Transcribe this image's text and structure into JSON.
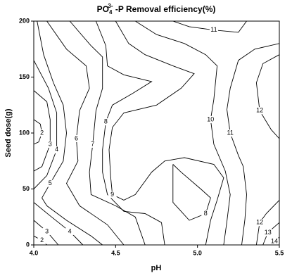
{
  "chart_data": {
    "type": "contour",
    "title": {
      "base": "PO",
      "sub": "4",
      "sup": "3-",
      "rest": " -P Removal efficiency(%)"
    },
    "xlabel": "pH",
    "ylabel": "Seed dose(g)",
    "xlim": [
      4.0,
      5.5
    ],
    "ylim": [
      0,
      200
    ],
    "xticks": [
      {
        "value": 4.0,
        "label": "4.0"
      },
      {
        "value": 4.5,
        "label": "4.5"
      },
      {
        "value": 5.0,
        "label": "5.0"
      },
      {
        "value": 5.5,
        "label": "5.5"
      }
    ],
    "yticks": [
      0,
      50,
      100,
      150,
      200
    ],
    "color": "#000000",
    "contours": [
      {
        "level": 2,
        "x": [
          4.0,
          4.04,
          4.05,
          4.03,
          4.0
        ],
        "y": [
          112,
          108,
          100,
          92,
          90
        ]
      },
      {
        "level": 2,
        "x": [
          4.0,
          4.05,
          4.08
        ],
        "y": [
          8,
          4,
          0
        ]
      },
      {
        "level": 3,
        "x": [
          4.0,
          4.08,
          4.1,
          4.1,
          4.05,
          4.0
        ],
        "y": [
          138,
          128,
          112,
          90,
          70,
          66
        ]
      },
      {
        "level": 3,
        "x": [
          4.0,
          4.08,
          4.15
        ],
        "y": [
          22,
          12,
          0
        ]
      },
      {
        "level": 4,
        "x": [
          4.0,
          4.09,
          4.14,
          4.14,
          4.08,
          4.0
        ],
        "y": [
          165,
          140,
          118,
          85,
          62,
          50
        ]
      },
      {
        "level": 4,
        "x": [
          4.0,
          4.1,
          4.22,
          4.3
        ],
        "y": [
          38,
          26,
          12,
          0
        ]
      },
      {
        "level": 5,
        "x": [
          4.02,
          4.06,
          4.12,
          4.18,
          4.2,
          4.18,
          4.1,
          4.05,
          4.08,
          4.2,
          4.35,
          4.42
        ],
        "y": [
          200,
          170,
          145,
          125,
          100,
          75,
          55,
          42,
          35,
          22,
          8,
          0
        ]
      },
      {
        "level": 6,
        "x": [
          4.08,
          4.2,
          4.32,
          4.34,
          4.28,
          4.26,
          4.27,
          4.2,
          4.28,
          4.45,
          4.55
        ],
        "y": [
          200,
          175,
          160,
          140,
          120,
          95,
          75,
          55,
          35,
          18,
          0
        ]
      },
      {
        "level": 7,
        "x": [
          4.22,
          4.35,
          4.42,
          4.42,
          4.38,
          4.36,
          4.34,
          4.35,
          4.5,
          4.62,
          4.68
        ],
        "y": [
          200,
          178,
          168,
          140,
          120,
          90,
          65,
          45,
          35,
          25,
          0
        ]
      },
      {
        "level": 8,
        "x": [
          4.38,
          4.44,
          4.45,
          4.55,
          4.72,
          4.6,
          4.48,
          4.44,
          4.42,
          4.42,
          4.45,
          4.55,
          4.68,
          4.78,
          4.8
        ],
        "y": [
          200,
          178,
          160,
          152,
          146,
          135,
          125,
          110,
          85,
          65,
          45,
          30,
          28,
          20,
          0
        ]
      },
      {
        "level": 8,
        "x": [
          4.85,
          4.9,
          5.02,
          5.08,
          5.05,
          4.95,
          4.85,
          4.85,
          4.85
        ],
        "y": [
          72,
          65,
          50,
          42,
          28,
          22,
          38,
          55,
          72
        ]
      },
      {
        "level": 9,
        "x": [
          4.5,
          4.58,
          4.68,
          4.85,
          4.98,
          4.9,
          4.75,
          4.55,
          4.48,
          4.46,
          4.47,
          4.48,
          4.55,
          4.62,
          4.72,
          4.8,
          4.92,
          5.1,
          5.16,
          5.12,
          5.08,
          5.05
        ],
        "y": [
          200,
          180,
          170,
          160,
          153,
          140,
          125,
          118,
          105,
          85,
          60,
          45,
          40,
          45,
          65,
          75,
          78,
          72,
          60,
          40,
          22,
          0
        ]
      },
      {
        "level": 10,
        "x": [
          4.62,
          4.75,
          4.92,
          5.05,
          5.12,
          5.1,
          5.08,
          5.1,
          5.17,
          5.2,
          5.18,
          5.16
        ],
        "y": [
          200,
          188,
          180,
          170,
          160,
          130,
          112,
          90,
          66,
          45,
          21,
          0
        ]
      },
      {
        "level": 11,
        "x": [
          4.85,
          4.95,
          5.1,
          5.25,
          5.3
        ],
        "y": [
          200,
          195,
          192,
          190,
          200
        ]
      },
      {
        "level": 11,
        "x": [
          5.5,
          5.35,
          5.25,
          5.2,
          5.18,
          5.2,
          5.25,
          5.28,
          5.3,
          5.29,
          5.27
        ],
        "y": [
          180,
          175,
          165,
          140,
          121,
          100,
          80,
          70,
          45,
          23,
          0
        ]
      },
      {
        "level": 12,
        "x": [
          5.5,
          5.4,
          5.36,
          5.38,
          5.45,
          5.5
        ],
        "y": [
          170,
          162,
          145,
          120,
          103,
          95
        ]
      },
      {
        "level": 12,
        "x": [
          5.5,
          5.42,
          5.38,
          5.36
        ],
        "y": [
          40,
          28,
          20,
          0
        ]
      },
      {
        "level": 13,
        "x": [
          5.5,
          5.43,
          5.4
        ],
        "y": [
          20,
          11,
          0
        ]
      },
      {
        "level": 14,
        "x": [
          5.5,
          5.47,
          5.46
        ],
        "y": [
          7,
          3,
          0
        ]
      }
    ]
  }
}
